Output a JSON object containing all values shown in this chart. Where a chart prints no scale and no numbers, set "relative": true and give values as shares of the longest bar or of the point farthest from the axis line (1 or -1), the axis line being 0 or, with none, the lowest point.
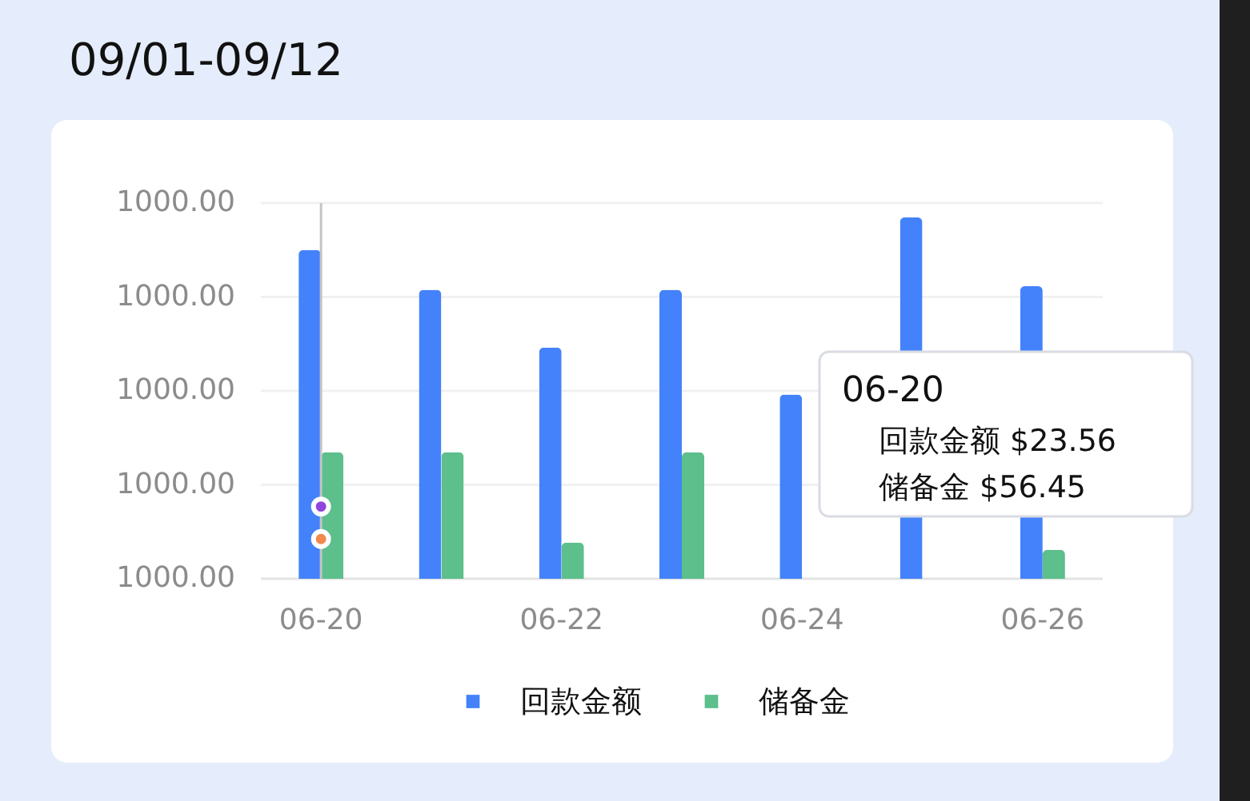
{
  "chart_data": {
    "type": "bar",
    "title": "09/01-09/12",
    "categories": [
      "06-20",
      null,
      "06-22",
      null,
      "06-24",
      null,
      "06-26"
    ],
    "relative": true,
    "legend": "bottom",
    "series": [
      {
        "name": "回款金额",
        "color": "#4382fa",
        "values": [
          0.91,
          0.8,
          0.64,
          0.8,
          0.51,
          1,
          0.81
        ]
      },
      {
        "name": "储备金",
        "color": "#5cbf8c",
        "values": [
          0.35,
          0.35,
          0.1,
          0.35,
          null,
          null,
          0.08
        ]
      },
      {
        "type": "scatter",
        "x": [
          "06-20",
          "06-20"
        ],
        "values": [
          0.2,
          0.11
        ],
        "colors": [
          "#9046dc",
          "#f0894c"
        ],
        "marker": "circle"
      }
    ],
    "ref_lines": [
      {
        "axis": "y",
        "value": 0,
        "color": "#e3e3e3"
      },
      {
        "axis": "y",
        "value": 0.26,
        "color": "#f1f1f1"
      },
      {
        "axis": "y",
        "value": 0.52,
        "color": "#f1f1f1"
      },
      {
        "axis": "y",
        "value": 0.78,
        "color": "#f1f1f1"
      },
      {
        "axis": "y",
        "value": 1.04,
        "color": "#f1f1f1"
      },
      {
        "axis": "x",
        "value": "06-20",
        "color": "#c4c4c4"
      }
    ],
    "annotations": [
      "1000.00",
      "1000.00",
      "1000.00",
      "1000.00",
      "1000.00",
      "06-20",
      "回款金额 $23.56",
      "储备金 $56.45"
    ]
  }
}
